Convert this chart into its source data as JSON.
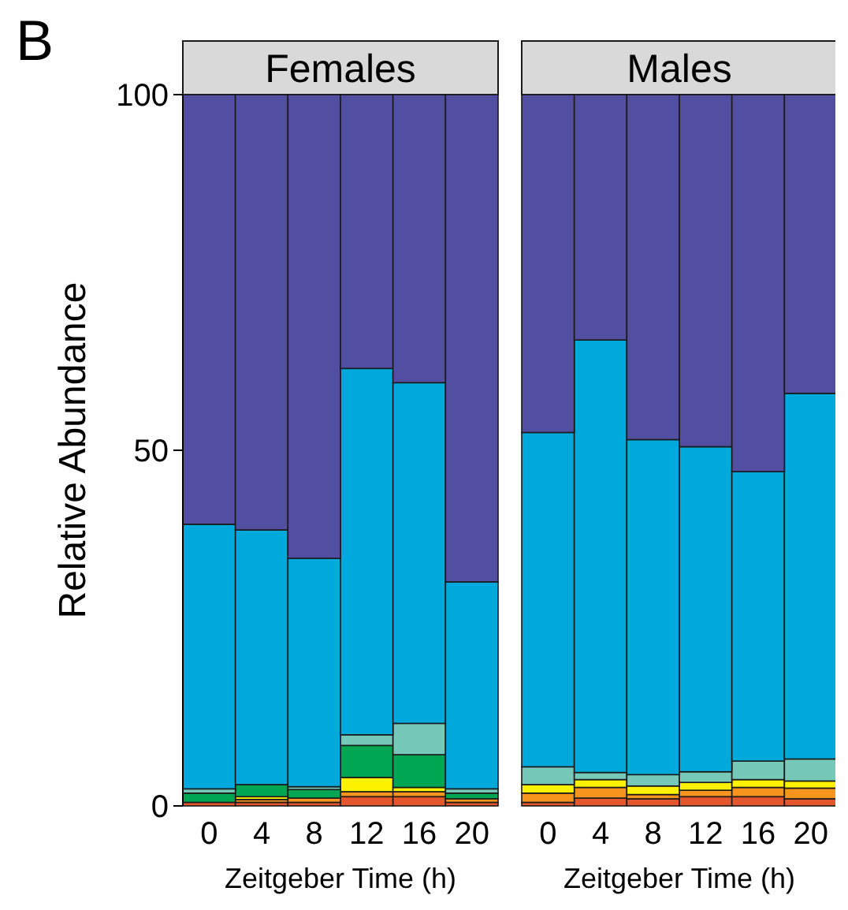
{
  "chart_data": [
    {
      "type": "bar",
      "stacked": true,
      "title": "Females",
      "xlabel": "Zeitgeber Time (h)",
      "ylabel": "Relative Abundance",
      "annotations": [
        "B"
      ],
      "categories": [
        "0",
        "4",
        "8",
        "12",
        "16",
        "20"
      ],
      "ylim": [
        0,
        100
      ],
      "yticks": [
        0,
        50,
        100
      ],
      "grid": false,
      "series": [
        {
          "color": "#e4572e",
          "values": [
            0.5,
            0.5,
            0.5,
            1.3,
            1.3,
            0.5
          ]
        },
        {
          "color": "#f7941d",
          "values": [
            null,
            0.4,
            0.6,
            0.7,
            0.7,
            0.5
          ]
        },
        {
          "color": "#fff200",
          "values": [
            null,
            0.4,
            null,
            2,
            0.6,
            0
          ]
        },
        {
          "color": "#00a651",
          "values": [
            1.3,
            1.7,
            1.2,
            4.5,
            4.6,
            0.8
          ]
        },
        {
          "color": "#76c8b8",
          "values": [
            0.6,
            null,
            0.4,
            1.5,
            4.4,
            0.6
          ]
        },
        {
          "color": "#00a9dc",
          "values": [
            37.2,
            35.8,
            32.1,
            51.5,
            47.9,
            29.1
          ]
        },
        {
          "color": "#524ea1",
          "values": [
            60.4,
            61.2,
            65.2,
            38.5,
            40.5,
            68.5
          ]
        }
      ]
    },
    {
      "type": "bar",
      "stacked": true,
      "title": "Males",
      "xlabel": "Zeitgeber Time (h)",
      "categories": [
        "0",
        "4",
        "8",
        "12",
        "16",
        "20"
      ],
      "ylim": [
        0,
        100
      ],
      "yticks": [
        0,
        50,
        100
      ],
      "tick_labels": "x",
      "grid": false,
      "series": [
        {
          "color": "#e4572e",
          "values": [
            0.5,
            1.1,
            1,
            1.3,
            1.3,
            1
          ]
        },
        {
          "color": "#f7941d",
          "values": [
            1.3,
            1.5,
            0.6,
            0.9,
            1.3,
            1.5
          ]
        },
        {
          "color": "#fff200",
          "values": [
            1.2,
            1.1,
            1.2,
            1.1,
            1.1,
            1
          ]
        },
        {
          "color": "#00a651",
          "values": [
            0,
            0,
            0,
            0,
            0,
            0
          ]
        },
        {
          "color": "#76c8b8",
          "values": [
            2.5,
            1,
            1.6,
            1.5,
            2.6,
            3.1
          ]
        },
        {
          "color": "#00a9dc",
          "values": [
            47,
            60.8,
            47.1,
            45.7,
            40.7,
            51.4
          ]
        },
        {
          "color": "#524ea1",
          "values": [
            47.5,
            34.5,
            48.5,
            49.5,
            53,
            42
          ]
        }
      ]
    }
  ]
}
